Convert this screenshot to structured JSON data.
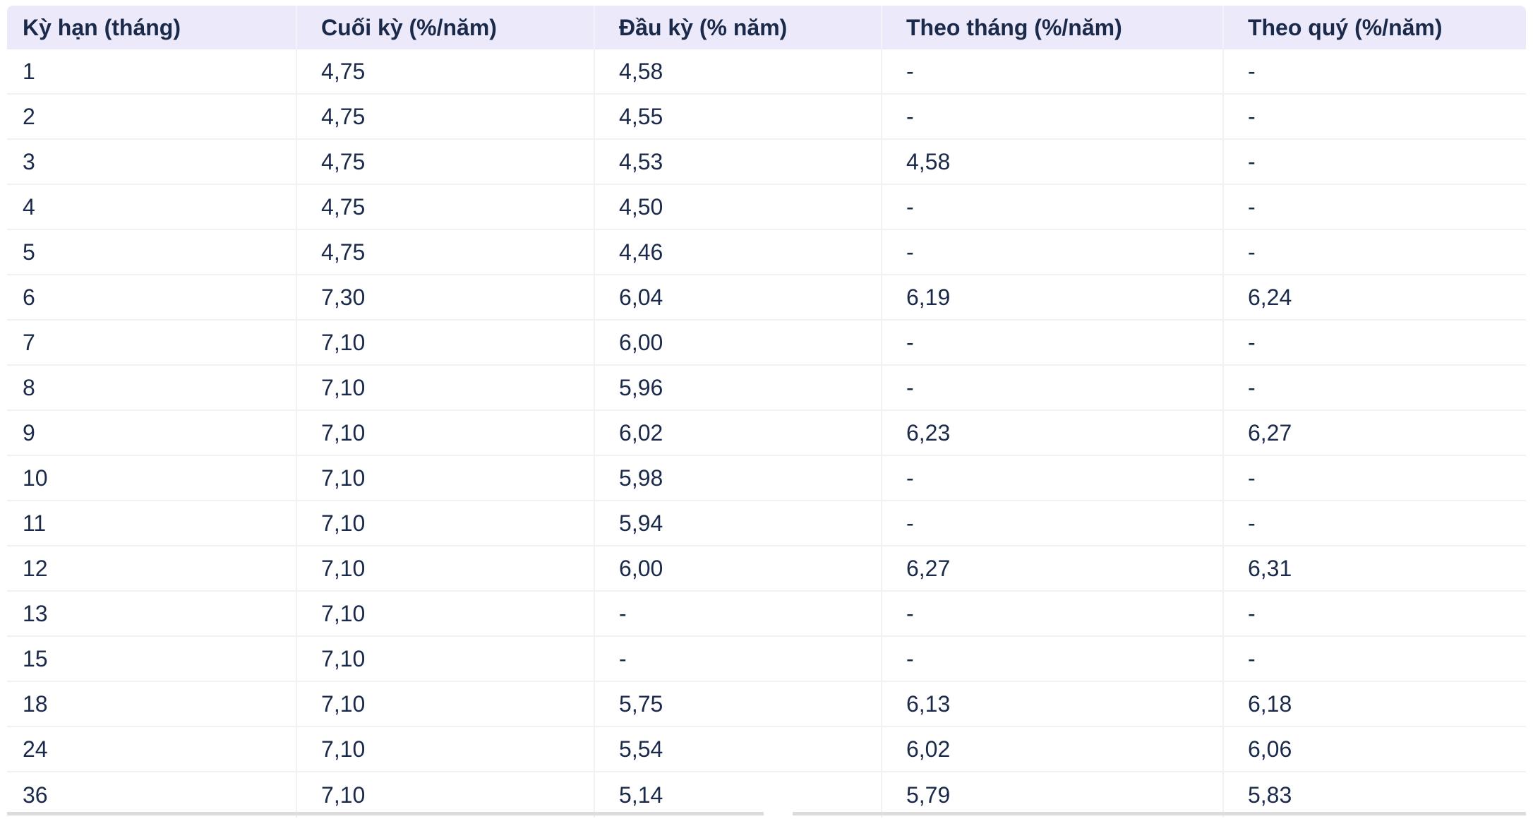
{
  "colors": {
    "header_bg": "#eceafa",
    "text_color": "#1b2a4a",
    "divider": "#f1f1f4",
    "bottom_bar": "#dcdcdc"
  },
  "table": {
    "columns": [
      {
        "key": "ky-han",
        "label": "Kỳ hạn (tháng)"
      },
      {
        "key": "cuoi-ky",
        "label": "Cuối kỳ (%/năm)"
      },
      {
        "key": "dau-ky",
        "label": "Đầu kỳ (% năm)"
      },
      {
        "key": "theo-thang",
        "label": "Theo tháng (%/năm)"
      },
      {
        "key": "theo-quy",
        "label": "Theo quý (%/năm)"
      }
    ],
    "rows": [
      [
        "1",
        "4,75",
        "4,58",
        "-",
        "-"
      ],
      [
        "2",
        "4,75",
        "4,55",
        "-",
        "-"
      ],
      [
        "3",
        "4,75",
        "4,53",
        "4,58",
        "-"
      ],
      [
        "4",
        "4,75",
        "4,50",
        "-",
        "-"
      ],
      [
        "5",
        "4,75",
        "4,46",
        "-",
        "-"
      ],
      [
        "6",
        "7,30",
        "6,04",
        "6,19",
        "6,24"
      ],
      [
        "7",
        "7,10",
        "6,00",
        "-",
        "-"
      ],
      [
        "8",
        "7,10",
        "5,96",
        "-",
        "-"
      ],
      [
        "9",
        "7,10",
        "6,02",
        "6,23",
        "6,27"
      ],
      [
        "10",
        "7,10",
        "5,98",
        "-",
        "-"
      ],
      [
        "11",
        "7,10",
        "5,94",
        "-",
        "-"
      ],
      [
        "12",
        "7,10",
        "6,00",
        "6,27",
        "6,31"
      ],
      [
        "13",
        "7,10",
        "-",
        "-",
        "-"
      ],
      [
        "15",
        "7,10",
        "-",
        "-",
        "-"
      ],
      [
        "18",
        "7,10",
        "5,75",
        "6,13",
        "6,18"
      ],
      [
        "24",
        "7,10",
        "5,54",
        "6,02",
        "6,06"
      ],
      [
        "36",
        "7,10",
        "5,14",
        "5,79",
        "5,83"
      ]
    ]
  },
  "chart_data": {
    "type": "table",
    "title": "",
    "columns": [
      "Kỳ hạn (tháng)",
      "Cuối kỳ (%/năm)",
      "Đầu kỳ (% năm)",
      "Theo tháng (%/năm)",
      "Theo quý (%/năm)"
    ],
    "rows": [
      [
        "1",
        "4,75",
        "4,58",
        "-",
        "-"
      ],
      [
        "2",
        "4,75",
        "4,55",
        "-",
        "-"
      ],
      [
        "3",
        "4,75",
        "4,53",
        "4,58",
        "-"
      ],
      [
        "4",
        "4,75",
        "4,50",
        "-",
        "-"
      ],
      [
        "5",
        "4,75",
        "4,46",
        "-",
        "-"
      ],
      [
        "6",
        "7,30",
        "6,04",
        "6,19",
        "6,24"
      ],
      [
        "7",
        "7,10",
        "6,00",
        "-",
        "-"
      ],
      [
        "8",
        "7,10",
        "5,96",
        "-",
        "-"
      ],
      [
        "9",
        "7,10",
        "6,02",
        "6,23",
        "6,27"
      ],
      [
        "10",
        "7,10",
        "5,98",
        "-",
        "-"
      ],
      [
        "11",
        "7,10",
        "5,94",
        "-",
        "-"
      ],
      [
        "12",
        "7,10",
        "6,00",
        "6,27",
        "6,31"
      ],
      [
        "13",
        "7,10",
        "-",
        "-",
        "-"
      ],
      [
        "15",
        "7,10",
        "-",
        "-",
        "-"
      ],
      [
        "18",
        "7,10",
        "5,75",
        "6,13",
        "6,18"
      ],
      [
        "24",
        "7,10",
        "5,54",
        "6,02",
        "6,06"
      ],
      [
        "36",
        "7,10",
        "5,14",
        "5,79",
        "5,83"
      ]
    ]
  }
}
